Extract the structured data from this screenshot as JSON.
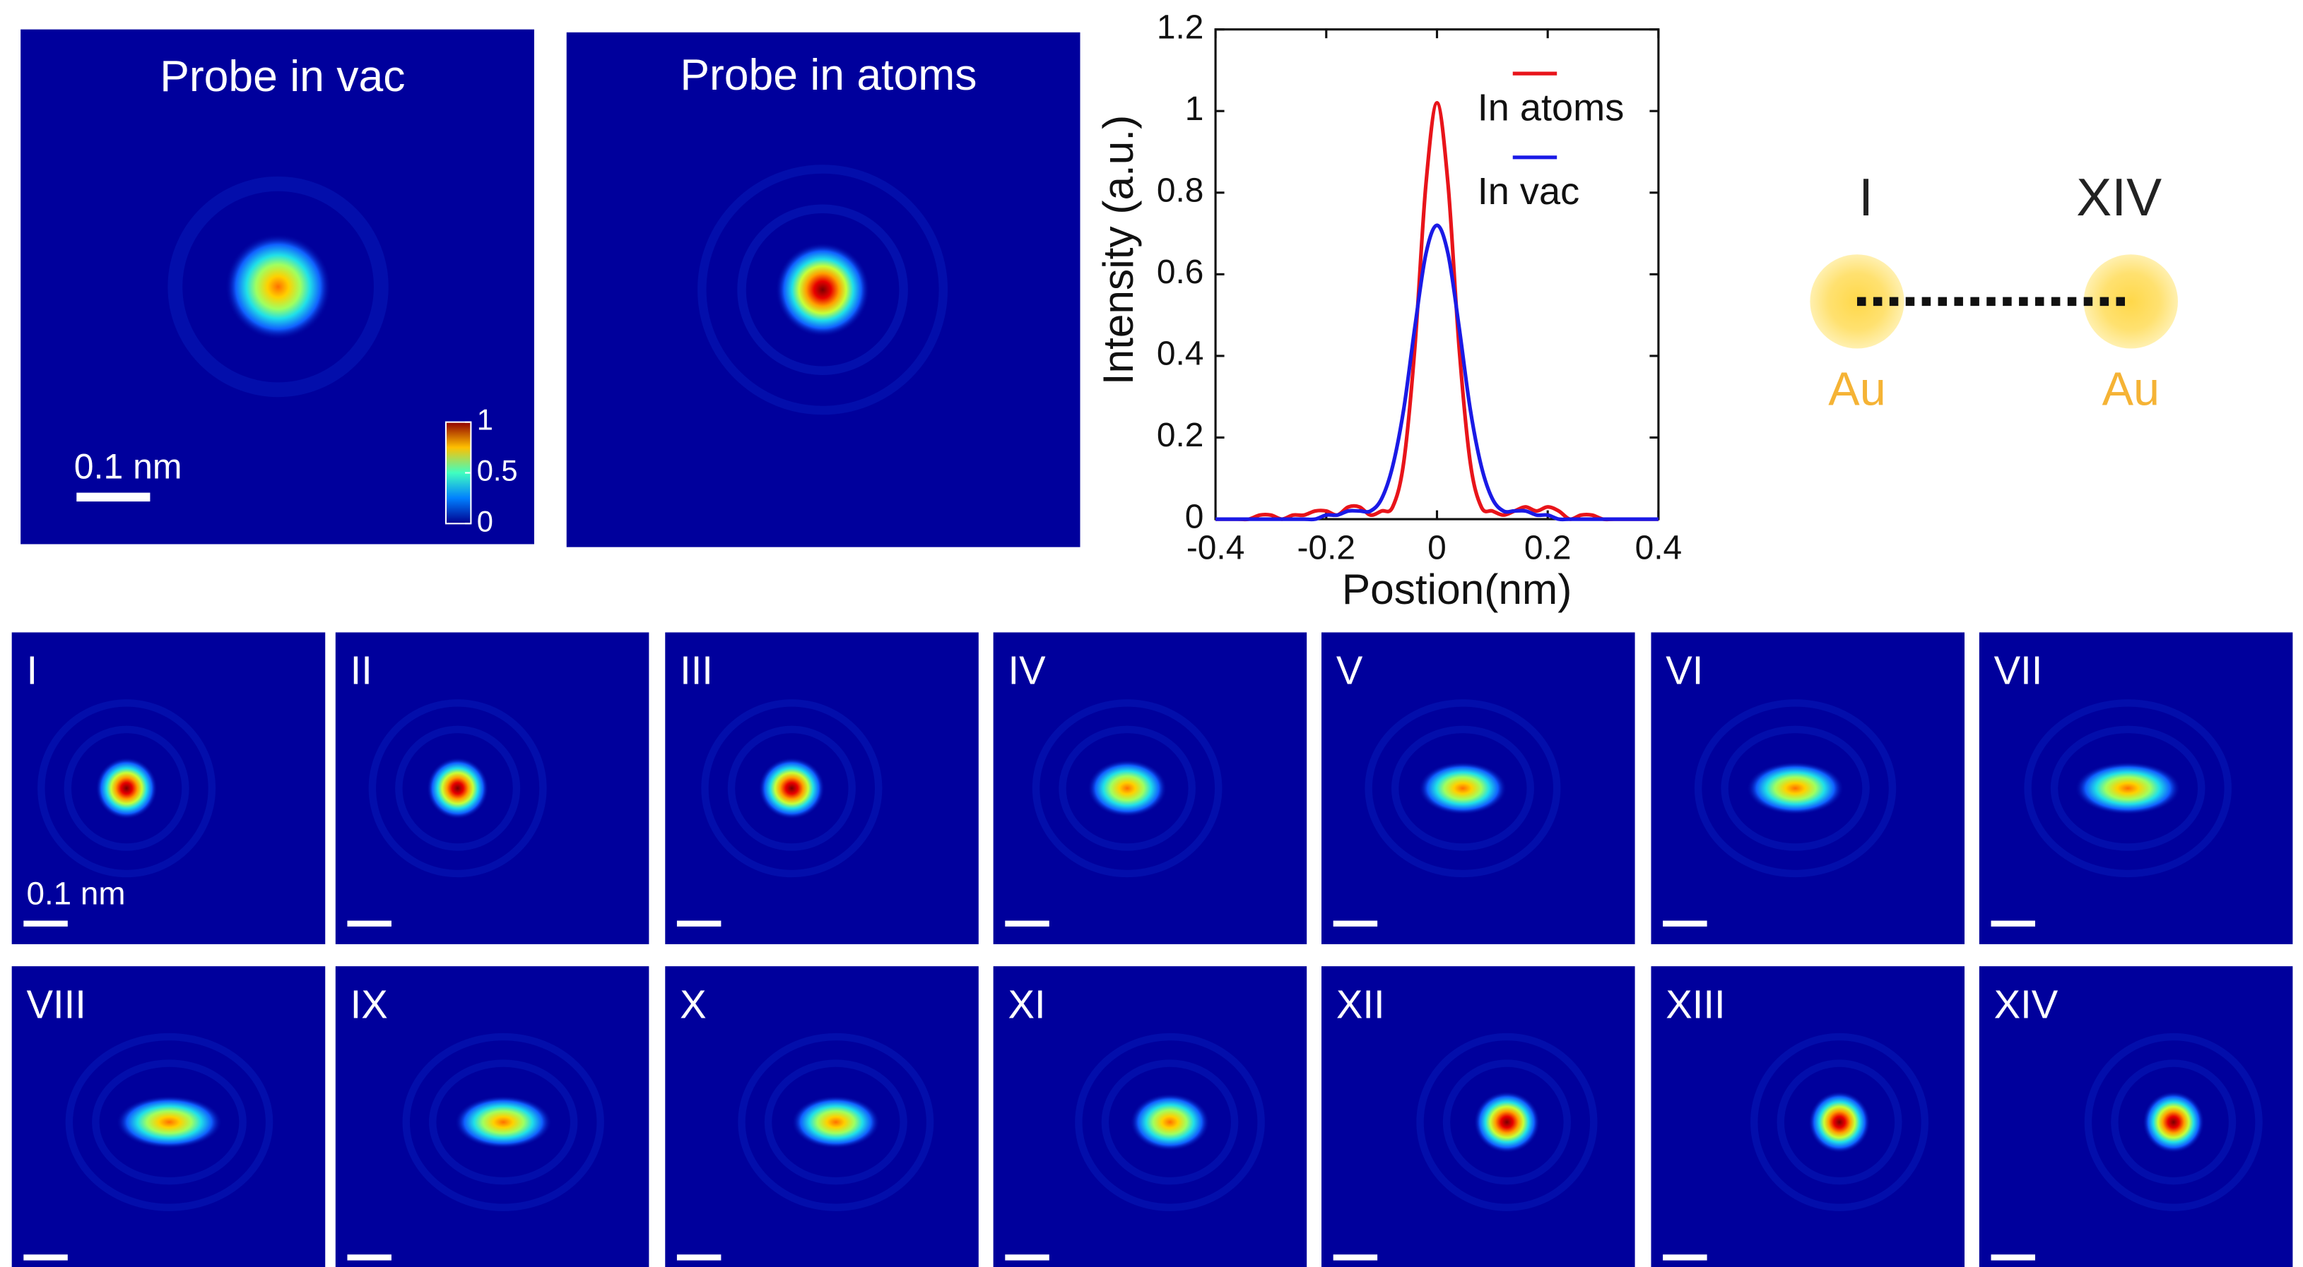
{
  "panels": [
    {
      "title": "Probe in vac",
      "scale_bar": "0.1 nm",
      "colorbar": {
        "ticks": [
          0,
          0.5,
          1
        ]
      }
    },
    {
      "title": "Probe in atoms"
    }
  ],
  "chart_data": {
    "type": "line",
    "x_label": "Postion(nm)",
    "y_label": "Intensity (a.u.)",
    "x": [
      -0.4,
      -0.38,
      -0.36,
      -0.34,
      -0.32,
      -0.3,
      -0.28,
      -0.26,
      -0.24,
      -0.22,
      -0.2,
      -0.18,
      -0.16,
      -0.14,
      -0.12,
      -0.1,
      -0.08,
      -0.06,
      -0.04,
      -0.02,
      0,
      0.02,
      0.04,
      0.06,
      0.08,
      0.1,
      0.12,
      0.14,
      0.16,
      0.18,
      0.2,
      0.22,
      0.24,
      0.26,
      0.28,
      0.3,
      0.32,
      0.34,
      0.36,
      0.38,
      0.4
    ],
    "series": [
      {
        "name": "In atoms",
        "color": "#e8141a",
        "values": [
          0,
          0,
          0,
          0,
          0.01,
          0.01,
          0,
          0.01,
          0.01,
          0.02,
          0.02,
          0.01,
          0.03,
          0.03,
          0.01,
          0.02,
          0.03,
          0.14,
          0.42,
          0.82,
          1.02,
          0.82,
          0.42,
          0.14,
          0.03,
          0.02,
          0.01,
          0.02,
          0.03,
          0.02,
          0.03,
          0.02,
          0,
          0.01,
          0.01,
          0,
          0,
          0,
          0,
          0,
          0
        ]
      },
      {
        "name": "In vac",
        "color": "#1a1ae6",
        "values": [
          0,
          0,
          0,
          0,
          0,
          0,
          0,
          0,
          0,
          0,
          0.01,
          0.01,
          0.02,
          0.02,
          0.02,
          0.05,
          0.13,
          0.27,
          0.47,
          0.65,
          0.72,
          0.65,
          0.47,
          0.27,
          0.13,
          0.05,
          0.02,
          0.02,
          0.02,
          0.01,
          0.01,
          0,
          0,
          0,
          0,
          0,
          0,
          0,
          0,
          0,
          0
        ]
      }
    ],
    "xlim": [
      -0.4,
      0.4
    ],
    "ylim": [
      0,
      1.2
    ],
    "xticks": [
      -0.4,
      -0.2,
      0,
      0.2,
      0.4
    ],
    "yticks": [
      0,
      0.2,
      0.4,
      0.6,
      0.8,
      1,
      1.2
    ],
    "legend": "top-right"
  },
  "diagram": {
    "left_label": "I",
    "right_label": "XIV",
    "atom_labels": [
      "Au",
      "Au"
    ]
  },
  "sequence": {
    "labels": [
      "I",
      "II",
      "III",
      "IV",
      "V",
      "VI",
      "VII",
      "VIII",
      "IX",
      "X",
      "XI",
      "XII",
      "XIII",
      "XIV"
    ],
    "scale_bar": "0.1 nm"
  }
}
